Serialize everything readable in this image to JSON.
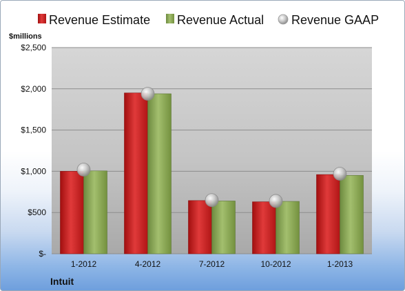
{
  "chart_data": {
    "type": "bar",
    "title": "",
    "xlabel": "",
    "ylabel": "$millions",
    "unit_label": "$millions",
    "company": "Intuit",
    "categories": [
      "1-2012",
      "4-2012",
      "7-2012",
      "10-2012",
      "1-2013"
    ],
    "ylim": [
      0,
      2500
    ],
    "yticks": [
      0,
      500,
      1000,
      1500,
      2000,
      2500
    ],
    "ytick_labels": [
      "$-",
      "$500",
      "$1,000",
      "$1,500",
      "$2,000",
      "$2,500"
    ],
    "grid": true,
    "legend_position": "top",
    "series": [
      {
        "name": "Revenue Estimate",
        "type": "bar",
        "color": "#cc1f1f",
        "values": [
          1000,
          1950,
          645,
          630,
          960
        ]
      },
      {
        "name": "Revenue Actual",
        "type": "bar",
        "color": "#8aa857",
        "values": [
          1005,
          1940,
          640,
          635,
          950
        ]
      },
      {
        "name": "Revenue GAAP",
        "type": "marker",
        "color": "#b8b8b8",
        "values": [
          1020,
          1940,
          650,
          640,
          970
        ]
      }
    ]
  }
}
